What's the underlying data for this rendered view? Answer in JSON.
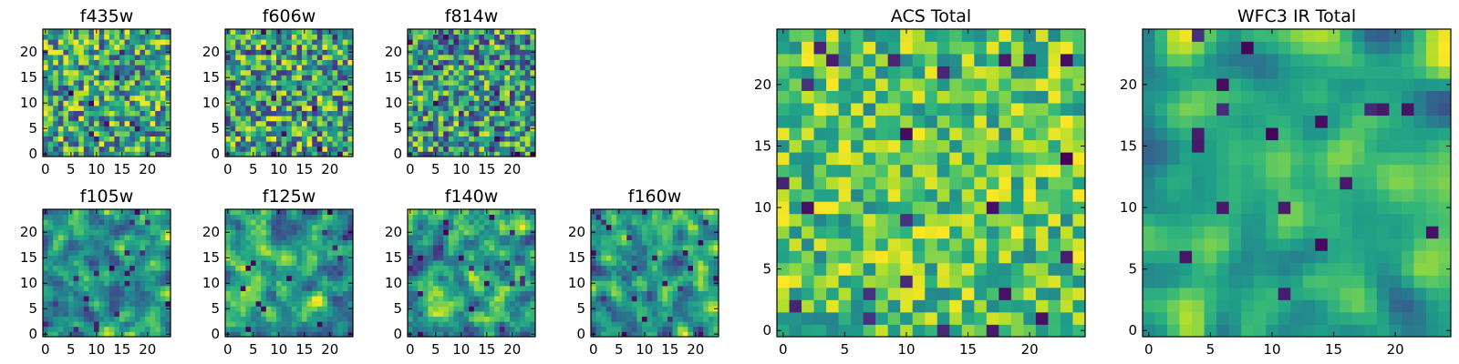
{
  "figure": {
    "background": "#ffffff",
    "colormap": "viridis"
  },
  "chart_data": [
    {
      "type": "heatmap",
      "title": "f435w",
      "grid": [
        25,
        25
      ],
      "xlim": [
        0,
        24
      ],
      "ylim": [
        0,
        24
      ],
      "xticks": [
        0,
        5,
        10,
        15,
        20
      ],
      "yticks": [
        0,
        5,
        10,
        15,
        20
      ],
      "seed": 11,
      "range": [
        0.18,
        1.0
      ],
      "smooth": 0,
      "values_note": ""
    },
    {
      "type": "heatmap",
      "title": "f606w",
      "grid": [
        25,
        25
      ],
      "xlim": [
        0,
        24
      ],
      "ylim": [
        0,
        24
      ],
      "xticks": [
        0,
        5,
        10,
        15,
        20
      ],
      "yticks": [
        0,
        5,
        10,
        15,
        20
      ],
      "seed": 23,
      "range": [
        0.15,
        1.0
      ],
      "smooth": 0
    },
    {
      "type": "heatmap",
      "title": "f814w",
      "grid": [
        25,
        25
      ],
      "xlim": [
        0,
        24
      ],
      "ylim": [
        0,
        24
      ],
      "xticks": [
        0,
        5,
        10,
        15,
        20
      ],
      "yticks": [
        0,
        5,
        10,
        15,
        20
      ],
      "seed": 37,
      "range": [
        0.12,
        0.95
      ],
      "smooth": 0
    },
    {
      "type": "heatmap",
      "title": "f105w",
      "grid": [
        25,
        25
      ],
      "xlim": [
        0,
        24
      ],
      "ylim": [
        0,
        24
      ],
      "xticks": [
        0,
        5,
        10,
        15,
        20
      ],
      "yticks": [
        0,
        5,
        10,
        15,
        20
      ],
      "seed": 41,
      "range": [
        0.1,
        1.0
      ],
      "smooth": 1
    },
    {
      "type": "heatmap",
      "title": "f125w",
      "grid": [
        25,
        25
      ],
      "xlim": [
        0,
        24
      ],
      "ylim": [
        0,
        24
      ],
      "xticks": [
        0,
        5,
        10,
        15,
        20
      ],
      "yticks": [
        0,
        5,
        10,
        15,
        20
      ],
      "seed": 53,
      "range": [
        0.1,
        1.0
      ],
      "smooth": 1
    },
    {
      "type": "heatmap",
      "title": "f140w",
      "grid": [
        25,
        25
      ],
      "xlim": [
        0,
        24
      ],
      "ylim": [
        0,
        24
      ],
      "xticks": [
        0,
        5,
        10,
        15,
        20
      ],
      "yticks": [
        0,
        5,
        10,
        15,
        20
      ],
      "seed": 67,
      "range": [
        0.08,
        1.0
      ],
      "smooth": 1
    },
    {
      "type": "heatmap",
      "title": "f160w",
      "grid": [
        25,
        25
      ],
      "xlim": [
        0,
        24
      ],
      "ylim": [
        0,
        24
      ],
      "xticks": [
        0,
        5,
        10,
        15,
        20
      ],
      "yticks": [
        0,
        5,
        10,
        15,
        20
      ],
      "seed": 79,
      "range": [
        0.05,
        1.0
      ],
      "smooth": 1
    },
    {
      "type": "heatmap",
      "title": "ACS Total",
      "grid": [
        25,
        25
      ],
      "xlim": [
        0,
        24
      ],
      "ylim": [
        0,
        24
      ],
      "xticks": [
        0,
        5,
        10,
        15,
        20
      ],
      "yticks": [
        0,
        5,
        10,
        15,
        20
      ],
      "seed": 97,
      "range": [
        0.45,
        1.0
      ],
      "smooth": 0
    },
    {
      "type": "heatmap",
      "title": "WFC3 IR Total",
      "grid": [
        25,
        25
      ],
      "xlim": [
        0,
        24
      ],
      "ylim": [
        0,
        24
      ],
      "xticks": [
        0,
        5,
        10,
        15,
        20
      ],
      "yticks": [
        0,
        5,
        10,
        15,
        20
      ],
      "seed": 113,
      "range": [
        0.25,
        1.0
      ],
      "smooth": 2
    }
  ]
}
